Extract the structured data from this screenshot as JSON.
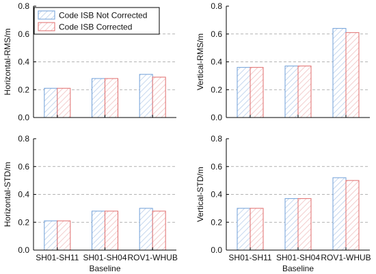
{
  "figure": {
    "legend": {
      "items": [
        "Code ISB Not Corrected",
        "Code ISB Corrected"
      ]
    },
    "colors": {
      "not_corrected": "#6f9fd8",
      "corrected": "#e06b6b",
      "grid": "#9a9a9a",
      "axis": "#000000"
    }
  },
  "chart_data": [
    {
      "type": "bar",
      "position": "top-left",
      "categories": [
        "SH01-SH11",
        "SH01-SH04",
        "ROV1-WHUB"
      ],
      "series": [
        {
          "name": "Code ISB Not Corrected",
          "values": [
            0.21,
            0.28,
            0.31
          ]
        },
        {
          "name": "Code ISB Corrected",
          "values": [
            0.21,
            0.28,
            0.29
          ]
        }
      ],
      "ylabel": "Horizontal-RMS/m",
      "xlabel": "",
      "ylim": [
        0,
        0.8
      ],
      "yticks": [
        "0.0",
        "0.2",
        "0.4",
        "0.6",
        "0.8"
      ],
      "grid": "horizontal dashed",
      "legend": "top-left",
      "show_xticklabels": false
    },
    {
      "type": "bar",
      "position": "top-right",
      "categories": [
        "SH01-SH11",
        "SH01-SH04",
        "ROV1-WHUB"
      ],
      "series": [
        {
          "name": "Code ISB Not Corrected",
          "values": [
            0.36,
            0.37,
            0.64
          ]
        },
        {
          "name": "Code ISB Corrected",
          "values": [
            0.36,
            0.37,
            0.61
          ]
        }
      ],
      "ylabel": "Vertical-RMS/m",
      "xlabel": "",
      "ylim": [
        0,
        0.8
      ],
      "yticks": [
        "0.0",
        "0.2",
        "0.4",
        "0.6",
        "0.8"
      ],
      "grid": "horizontal dashed",
      "show_xticklabels": false
    },
    {
      "type": "bar",
      "position": "bottom-left",
      "categories": [
        "SH01-SH11",
        "SH01-SH04",
        "ROV1-WHUB"
      ],
      "series": [
        {
          "name": "Code ISB Not Corrected",
          "values": [
            0.21,
            0.28,
            0.3
          ]
        },
        {
          "name": "Code ISB Corrected",
          "values": [
            0.21,
            0.28,
            0.28
          ]
        }
      ],
      "ylabel": "Horizontal-STD/m",
      "xlabel": "Baseline",
      "ylim": [
        0,
        0.8
      ],
      "yticks": [
        "0.0",
        "0.2",
        "0.4",
        "0.6",
        "0.8"
      ],
      "grid": "horizontal dashed",
      "show_xticklabels": true
    },
    {
      "type": "bar",
      "position": "bottom-right",
      "categories": [
        "SH01-SH11",
        "SH01-SH04",
        "ROV1-WHUB"
      ],
      "series": [
        {
          "name": "Code ISB Not Corrected",
          "values": [
            0.3,
            0.37,
            0.52
          ]
        },
        {
          "name": "Code ISB Corrected",
          "values": [
            0.3,
            0.37,
            0.5
          ]
        }
      ],
      "ylabel": "Vertical-STD/m",
      "xlabel": "Baseline",
      "ylim": [
        0,
        0.8
      ],
      "yticks": [
        "0.0",
        "0.2",
        "0.4",
        "0.6",
        "0.8"
      ],
      "grid": "horizontal dashed",
      "show_xticklabels": true
    }
  ]
}
